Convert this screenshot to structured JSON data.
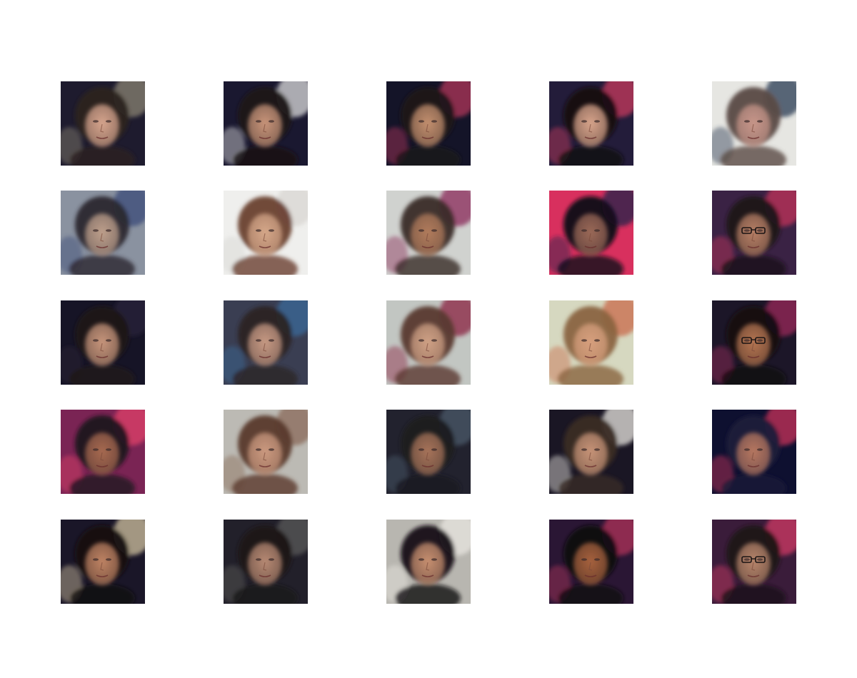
{
  "grid": {
    "rows": 5,
    "cols": 5
  },
  "tiles": [
    {
      "bg": "#1e1b2e",
      "accent": "#8a8372",
      "hair": "#2a2220",
      "skin": "#d7a58e",
      "glasses": false
    },
    {
      "bg": "#1a1830",
      "accent": "#dcdcdc",
      "hair": "#1a1414",
      "skin": "#c9957a",
      "glasses": false
    },
    {
      "bg": "#141428",
      "accent": "#b0345a",
      "hair": "#1c1818",
      "skin": "#c4906f",
      "glasses": false
    },
    {
      "bg": "#231c3a",
      "accent": "#c73a5e",
      "hair": "#141010",
      "skin": "#d9a58c",
      "glasses": false
    },
    {
      "bg": "#e6e6e2",
      "accent": "#2a3a52",
      "hair": "#5a4a44",
      "skin": "#c8968a",
      "glasses": false
    },
    {
      "bg": "#8a92a0",
      "accent": "#3a4a78",
      "hair": "#2c2830",
      "skin": "#bfa08c",
      "glasses": false
    },
    {
      "bg": "#efefed",
      "accent": "#d8d6d2",
      "hair": "#6a4030",
      "skin": "#d6a88a",
      "glasses": false
    },
    {
      "bg": "#d0d2cf",
      "accent": "#8a2a58",
      "hair": "#3a2c28",
      "skin": "#b27c5c",
      "glasses": false
    },
    {
      "bg": "#d8305e",
      "accent": "#20204a",
      "hair": "#121018",
      "skin": "#9c6a58",
      "glasses": false
    },
    {
      "bg": "#3a2244",
      "accent": "#c0305a",
      "hair": "#1a1418",
      "skin": "#b88066",
      "glasses": true
    },
    {
      "bg": "#161426",
      "accent": "#2a2438",
      "hair": "#1e1818",
      "skin": "#c8967c",
      "glasses": false
    },
    {
      "bg": "#3a3e52",
      "accent": "#3a6a9a",
      "hair": "#2a2424",
      "skin": "#c89a84",
      "glasses": false
    },
    {
      "bg": "#c2c6c2",
      "accent": "#8a2040",
      "hair": "#5a3a30",
      "skin": "#d0a286",
      "glasses": false
    },
    {
      "bg": "#d6d8c0",
      "accent": "#c86a4a",
      "hair": "#8a6440",
      "skin": "#d8a07e",
      "glasses": false
    },
    {
      "bg": "#1c1628",
      "accent": "#9a2a5a",
      "hair": "#141010",
      "skin": "#b67652",
      "glasses": true
    },
    {
      "bg": "#7a2454",
      "accent": "#e04068",
      "hair": "#1e1620",
      "skin": "#a86a50",
      "glasses": false
    },
    {
      "bg": "#bcbab4",
      "accent": "#8a6a58",
      "hair": "#5a3a2c",
      "skin": "#cc9a80",
      "glasses": false
    },
    {
      "bg": "#22222e",
      "accent": "#4a5a6a",
      "hair": "#1c1a20",
      "skin": "#a8745a",
      "glasses": false
    },
    {
      "bg": "#1a1624",
      "accent": "#e8e6e0",
      "hair": "#3a2a24",
      "skin": "#c89478",
      "glasses": false
    },
    {
      "bg": "#0e1030",
      "accent": "#c8305a",
      "hair": "#1a1a3a",
      "skin": "#b87860",
      "glasses": false
    },
    {
      "bg": "#1a1628",
      "accent": "#d0c2a0",
      "hair": "#141010",
      "skin": "#c08464",
      "glasses": false
    },
    {
      "bg": "#22202a",
      "accent": "#5a5a58",
      "hair": "#1a1616",
      "skin": "#b88a74",
      "glasses": false
    },
    {
      "bg": "#b8b6b0",
      "accent": "#e8e6e0",
      "hair": "#141014",
      "skin": "#c89070",
      "glasses": false
    },
    {
      "bg": "#2a1634",
      "accent": "#b0305a",
      "hair": "#100c10",
      "skin": "#a8623e",
      "glasses": false
    },
    {
      "bg": "#3a1c3a",
      "accent": "#d03a66",
      "hair": "#1a1416",
      "skin": "#b8866c",
      "glasses": true
    }
  ]
}
